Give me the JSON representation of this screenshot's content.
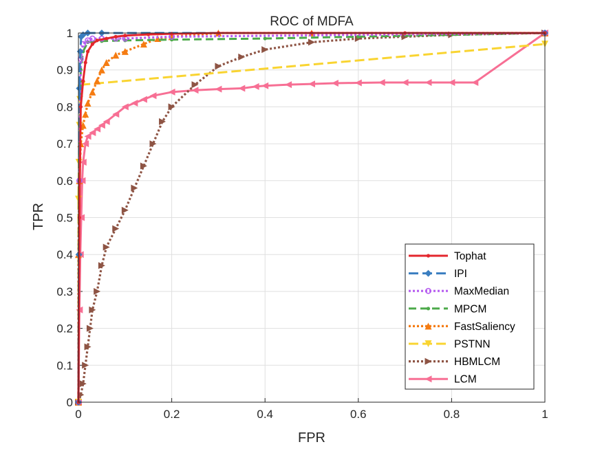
{
  "chart_data": {
    "type": "line",
    "title": "ROC of MDFA",
    "xlabel": "FPR",
    "ylabel": "TPR",
    "xlim": [
      0,
      1
    ],
    "ylim": [
      0,
      1
    ],
    "xticks": [
      "0",
      "0.2",
      "0.4",
      "0.6",
      "0.8",
      "1"
    ],
    "yticks": [
      "0",
      "0.1",
      "0.2",
      "0.3",
      "0.4",
      "0.5",
      "0.6",
      "0.7",
      "0.8",
      "0.9",
      "1"
    ],
    "grid": true,
    "legend_position": "bottom-right",
    "series": [
      {
        "name": "Tophat",
        "color": "#E3262D",
        "dash": "solid",
        "marker": "dot",
        "x": [
          0,
          0.002,
          0.005,
          0.01,
          0.015,
          0.02,
          0.03,
          0.04,
          0.06,
          0.08,
          0.1,
          0.15,
          0.2,
          0.3,
          0.5,
          0.7,
          1
        ],
        "y": [
          0,
          0.5,
          0.8,
          0.87,
          0.92,
          0.95,
          0.97,
          0.98,
          0.985,
          0.99,
          0.993,
          0.996,
          0.998,
          1,
          1,
          1,
          1
        ]
      },
      {
        "name": "IPI",
        "color": "#3A7EC0",
        "dash": "longdash",
        "marker": "diamond",
        "x": [
          0,
          0.001,
          0.002,
          0.004,
          0.006,
          0.01,
          0.02,
          0.05,
          1
        ],
        "y": [
          0,
          0.4,
          0.85,
          0.95,
          0.99,
          0.995,
          1,
          1,
          1
        ]
      },
      {
        "name": "MaxMedian",
        "color": "#B65DF0",
        "dash": "dotted",
        "marker": "circle",
        "x": [
          0,
          0.002,
          0.005,
          0.01,
          0.02,
          0.03,
          0.05,
          0.08,
          0.1,
          0.2,
          1
        ],
        "y": [
          0,
          0.6,
          0.93,
          0.97,
          0.98,
          0.985,
          0.985,
          0.985,
          0.985,
          0.99,
          1
        ]
      },
      {
        "name": "MPCM",
        "color": "#4DAA4A",
        "dash": "dashed",
        "marker": "dot",
        "x": [
          0,
          0.002,
          0.005,
          0.01,
          0.02,
          0.05,
          0.1,
          0.2,
          0.4,
          0.6,
          1
        ],
        "y": [
          0,
          0.6,
          0.9,
          0.95,
          0.975,
          0.978,
          0.98,
          0.982,
          0.985,
          0.99,
          1
        ]
      },
      {
        "name": "FastSaliency",
        "color": "#F57C12",
        "dash": "dotted",
        "marker": "triangle-up",
        "x": [
          0,
          0.0,
          0.002,
          0.005,
          0.01,
          0.015,
          0.02,
          0.03,
          0.04,
          0.05,
          0.06,
          0.08,
          0.1,
          0.14,
          0.17,
          0.2,
          0.3,
          0.5,
          1
        ],
        "y": [
          0,
          0.4,
          0.6,
          0.7,
          0.75,
          0.78,
          0.81,
          0.84,
          0.87,
          0.9,
          0.92,
          0.94,
          0.95,
          0.97,
          0.985,
          0.99,
          1,
          1,
          1
        ]
      },
      {
        "name": "PSTNN",
        "color": "#F9D431",
        "dash": "longdash",
        "marker": "triangle-down",
        "x": [
          0,
          0.0,
          0.001,
          0.002,
          0.003,
          0.005,
          0.008,
          1
        ],
        "y": [
          0,
          0.55,
          0.65,
          0.75,
          0.82,
          0.85,
          0.86,
          0.97
        ]
      },
      {
        "name": "HBMLCM",
        "color": "#8E5444",
        "dash": "dotted",
        "marker": "triangle-right",
        "x": [
          0,
          0.005,
          0.01,
          0.015,
          0.02,
          0.025,
          0.03,
          0.04,
          0.05,
          0.06,
          0.08,
          0.1,
          0.12,
          0.14,
          0.16,
          0.18,
          0.2,
          0.25,
          0.3,
          0.35,
          0.4,
          0.5,
          0.6,
          0.7,
          0.8,
          1
        ],
        "y": [
          0,
          0.02,
          0.05,
          0.1,
          0.15,
          0.2,
          0.25,
          0.3,
          0.37,
          0.42,
          0.47,
          0.52,
          0.58,
          0.64,
          0.7,
          0.76,
          0.8,
          0.86,
          0.91,
          0.935,
          0.955,
          0.975,
          0.985,
          0.99,
          0.995,
          1
        ]
      },
      {
        "name": "LCM",
        "color": "#F76F94",
        "dash": "solid",
        "marker": "triangle-left",
        "x": [
          0,
          0.002,
          0.004,
          0.006,
          0.008,
          0.01,
          0.015,
          0.02,
          0.03,
          0.04,
          0.05,
          0.06,
          0.08,
          0.1,
          0.12,
          0.14,
          0.16,
          0.2,
          0.25,
          0.3,
          0.35,
          0.38,
          0.4,
          0.45,
          0.5,
          0.55,
          0.6,
          0.65,
          0.7,
          0.75,
          0.8,
          0.85,
          1
        ],
        "y": [
          0,
          0.25,
          0.4,
          0.5,
          0.6,
          0.65,
          0.7,
          0.72,
          0.73,
          0.74,
          0.75,
          0.76,
          0.78,
          0.8,
          0.81,
          0.82,
          0.83,
          0.84,
          0.845,
          0.848,
          0.85,
          0.855,
          0.857,
          0.86,
          0.862,
          0.864,
          0.865,
          0.866,
          0.866,
          0.866,
          0.866,
          0.866,
          1
        ]
      }
    ]
  }
}
